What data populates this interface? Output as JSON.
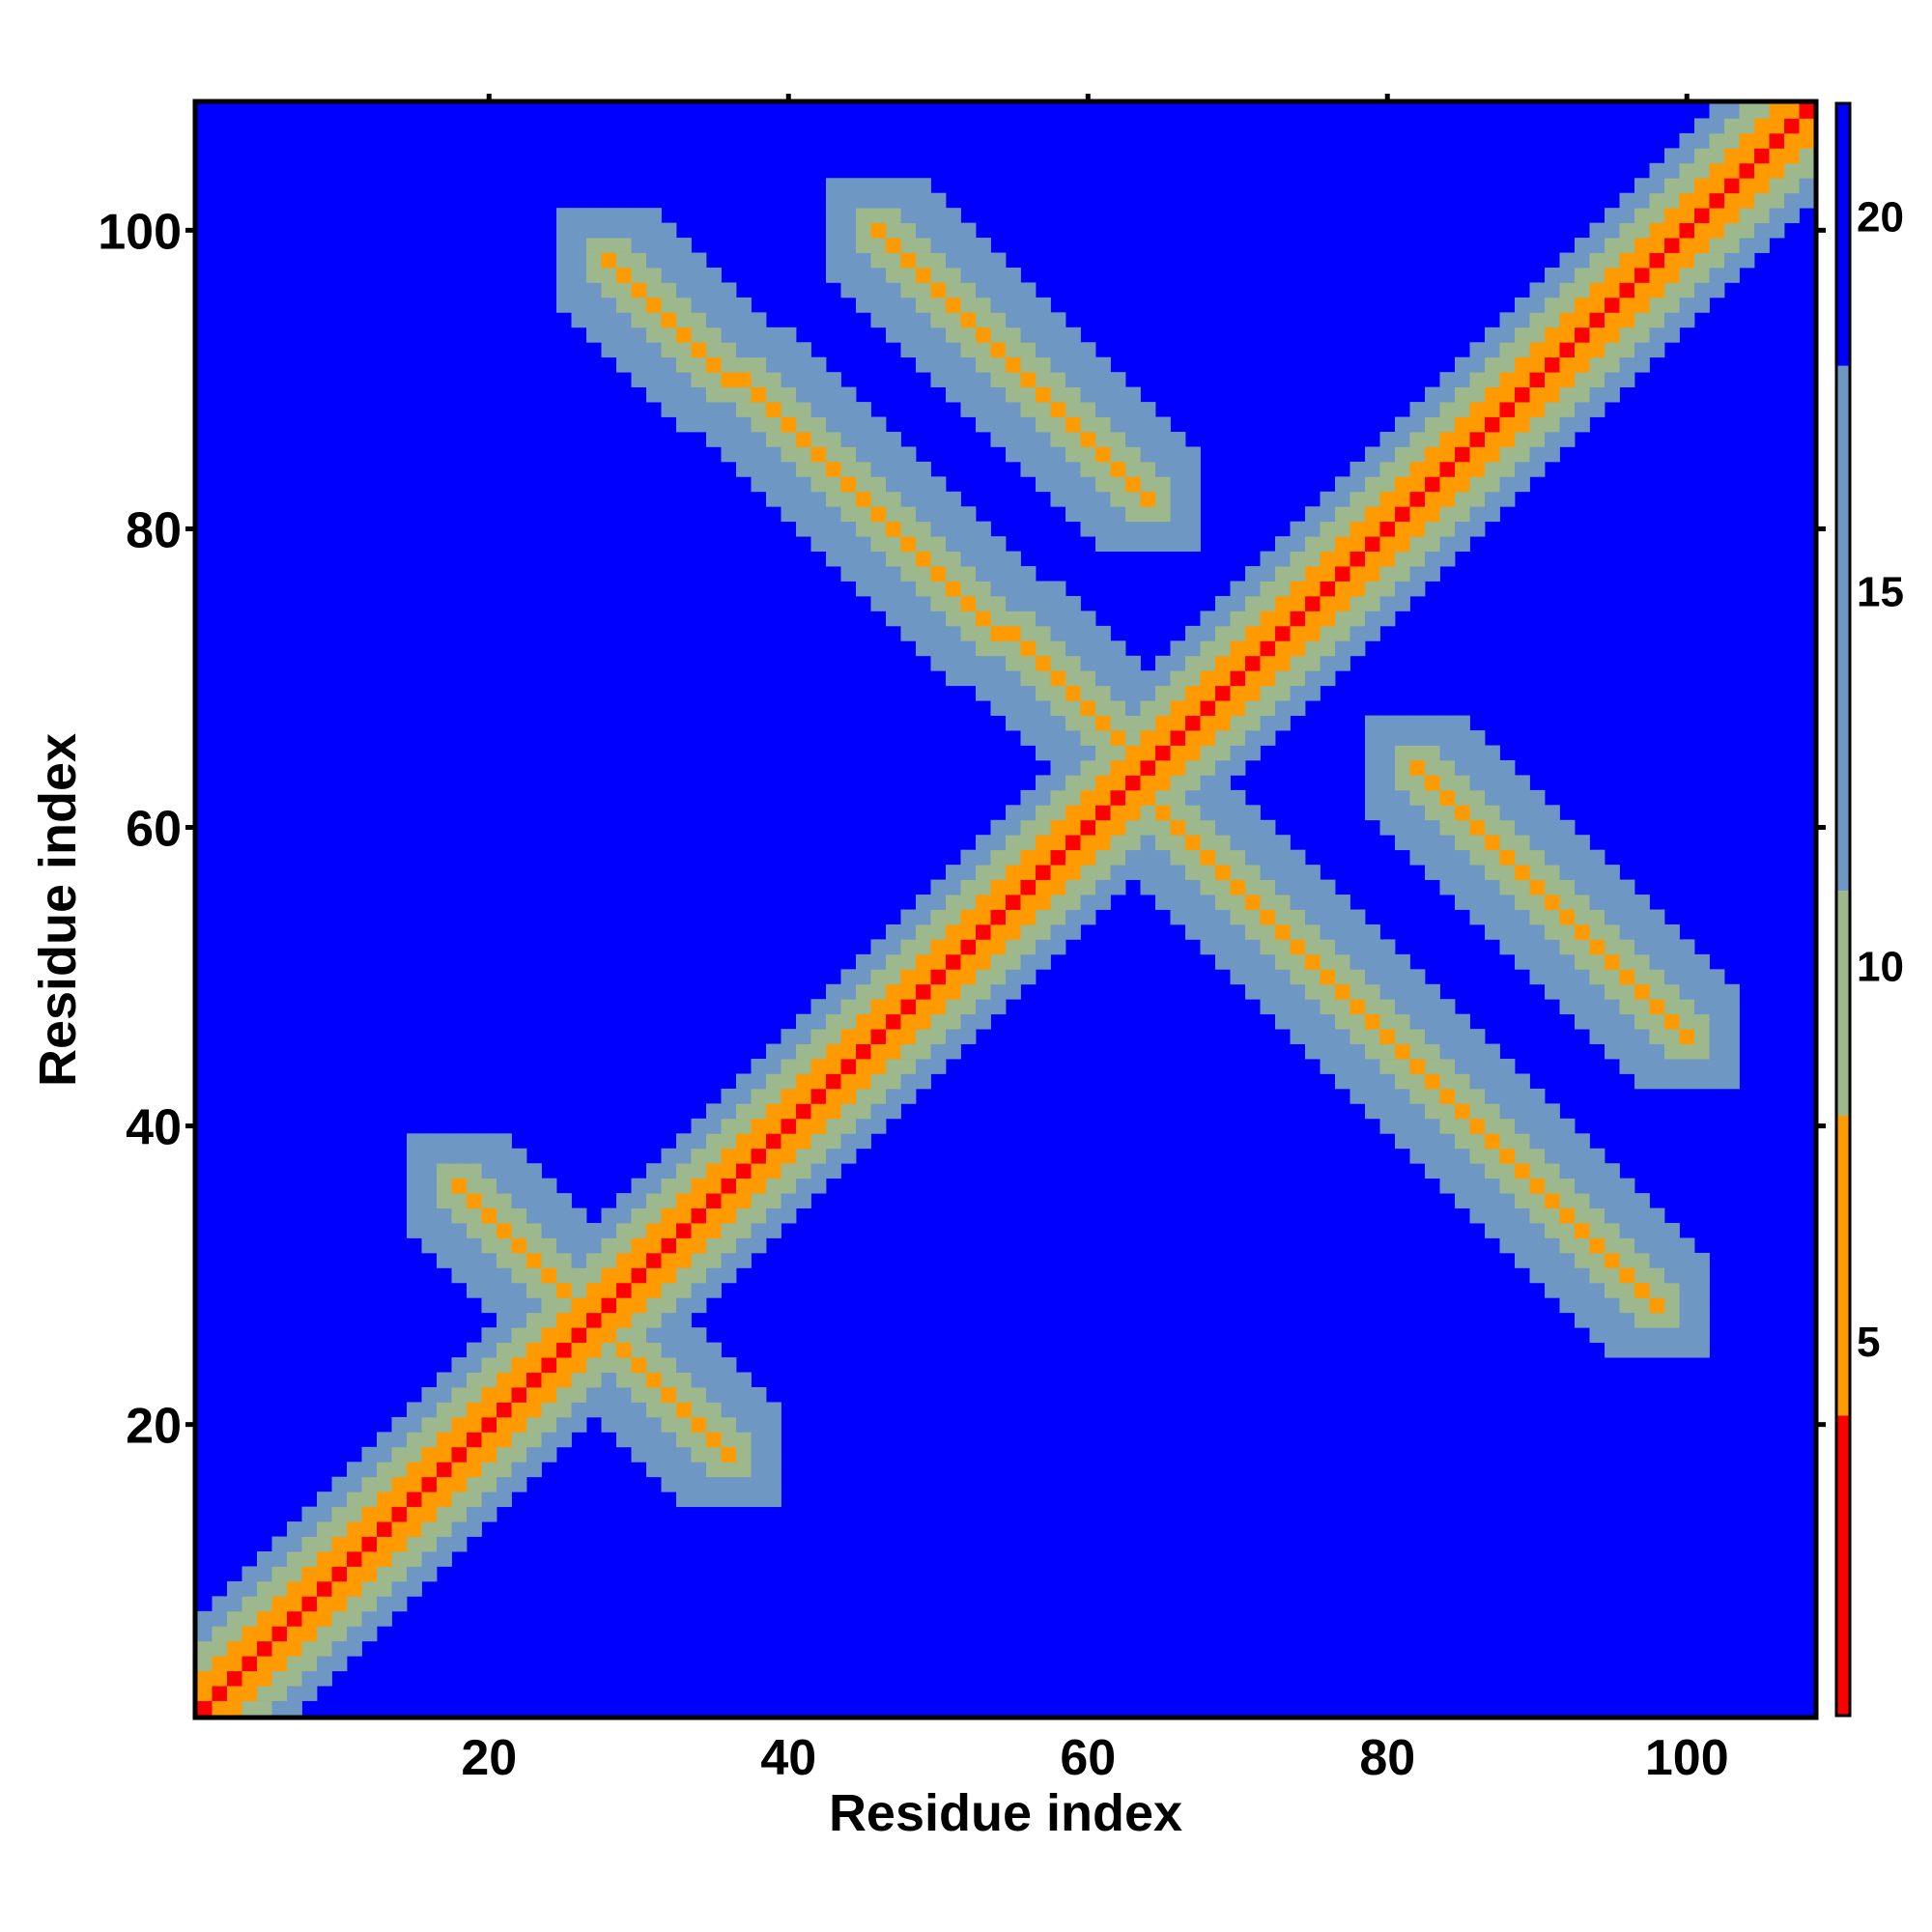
{
  "chart_data": {
    "type": "heatmap",
    "title": "",
    "xlabel": "Residue index",
    "ylabel": "Residue index",
    "xlim": [
      1,
      108
    ],
    "ylim": [
      1,
      108
    ],
    "x_ticks": [
      20,
      40,
      60,
      80,
      100
    ],
    "y_ticks": [
      20,
      40,
      60,
      80,
      100
    ],
    "n_residues": 108,
    "colorbar": {
      "ticks": [
        5,
        10,
        15,
        20
      ],
      "range": [
        0,
        21.5
      ],
      "scale": [
        {
          "from": 0,
          "to": 4,
          "color": "#ff0000"
        },
        {
          "from": 4,
          "to": 8,
          "color": "#ff9a00"
        },
        {
          "from": 8,
          "to": 11,
          "color": "#9cb88c"
        },
        {
          "from": 11,
          "to": 18,
          "color": "#6f97c4"
        },
        {
          "from": 18,
          "to": 21.5,
          "color": "#0000ff"
        }
      ]
    },
    "contact_bands": [
      {
        "description": "main diagonal",
        "x_start": 1,
        "y_start": 1,
        "x_end": 108,
        "y_end": 108,
        "values": [
          2,
          6,
          10,
          14,
          19
        ]
      },
      {
        "description": "antiparallel hairpin",
        "x_start": 18,
        "y_start": 36,
        "x_end": 26,
        "y_end": 28,
        "values": [
          6,
          9,
          13,
          17
        ]
      },
      {
        "description": "antiparallel hairpin",
        "x_start": 28,
        "y_start": 26,
        "x_end": 36,
        "y_end": 18,
        "values": [
          6,
          9,
          13,
          17
        ]
      },
      {
        "description": "antiparallel strand pair",
        "x_start": 28,
        "y_start": 98,
        "x_end": 64,
        "y_end": 64,
        "values": [
          6,
          9,
          13,
          17
        ]
      },
      {
        "description": "antiparallel strand pair",
        "x_start": 64,
        "y_start": 62,
        "x_end": 98,
        "y_end": 28,
        "values": [
          6,
          9,
          13,
          17
        ]
      },
      {
        "description": "antiparallel strand pair",
        "x_start": 46,
        "y_start": 100,
        "x_end": 64,
        "y_end": 82,
        "values": [
          6,
          9,
          13,
          17
        ]
      },
      {
        "description": "antiparallel strand pair",
        "x_start": 82,
        "y_start": 64,
        "x_end": 100,
        "y_end": 46,
        "values": [
          6,
          9,
          13,
          17
        ]
      }
    ]
  }
}
